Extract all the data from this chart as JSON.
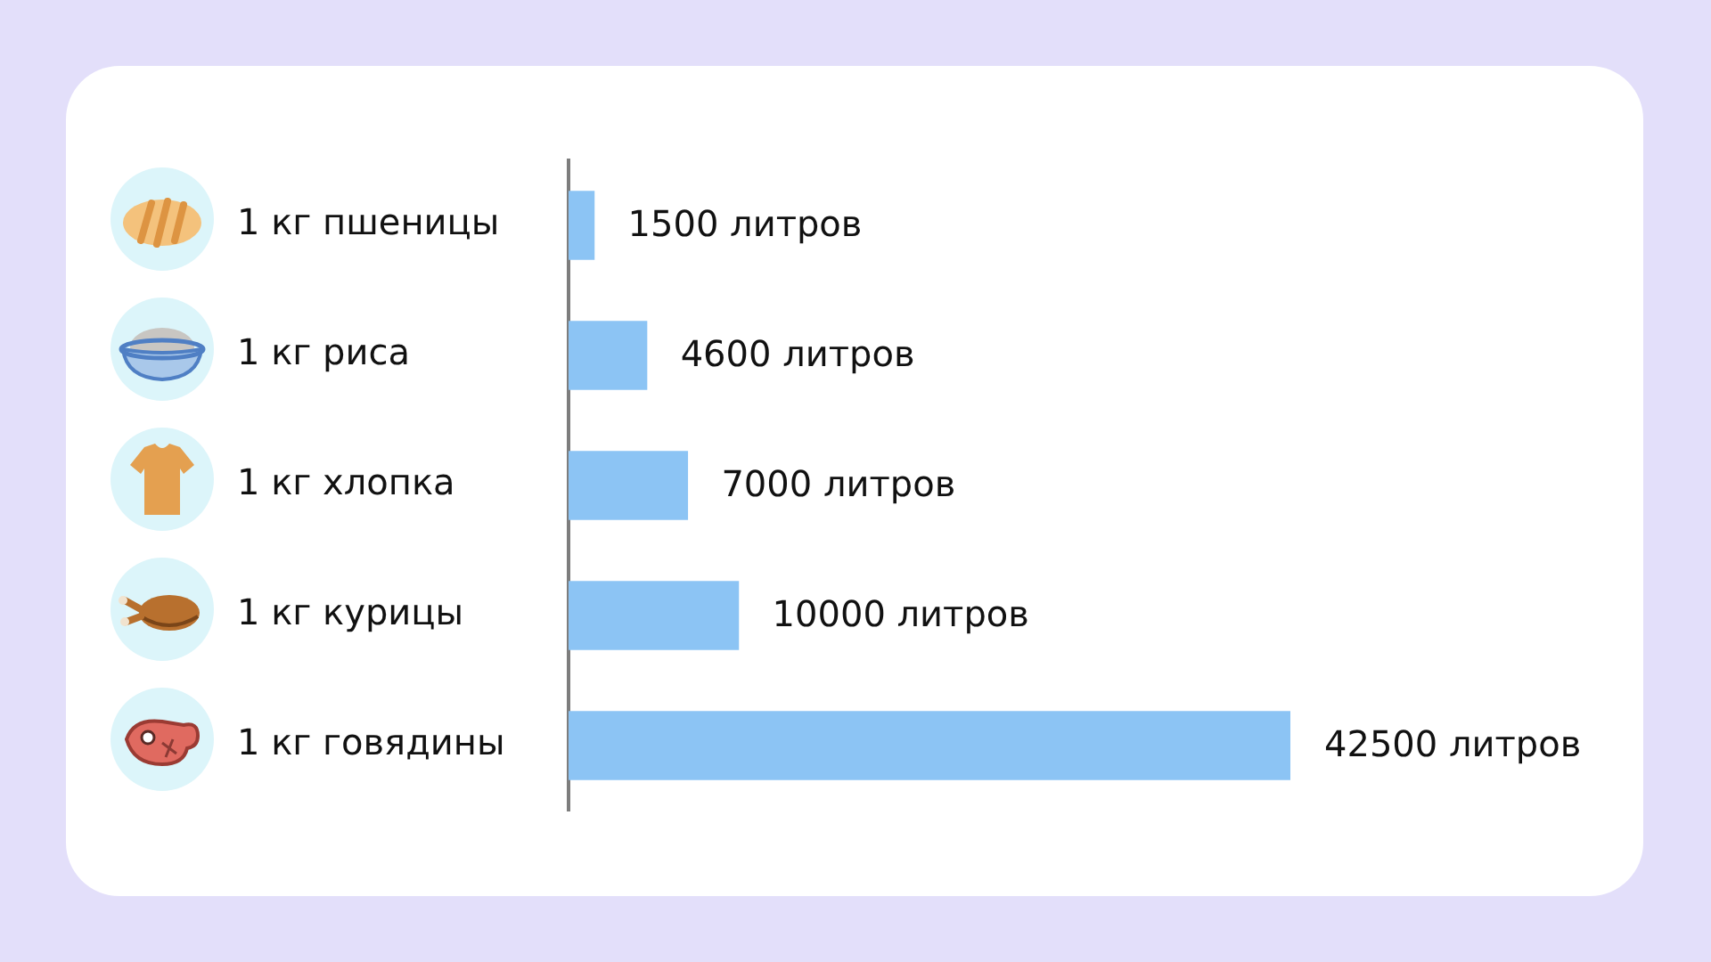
{
  "chart_data": {
    "type": "bar",
    "orientation": "horizontal",
    "categories": [
      "1 кг пшеницы",
      "1 кг риса",
      "1 кг хлопка",
      "1 кг курицы",
      "1 кг говядины"
    ],
    "values": [
      1500,
      4600,
      7000,
      10000,
      42500
    ],
    "value_labels": [
      "1500 литров",
      "4600 литров",
      "7000 литров",
      "10000 литров",
      "42500 литров"
    ],
    "color": "#8cc4f4",
    "tick_labels": "y"
  }
}
